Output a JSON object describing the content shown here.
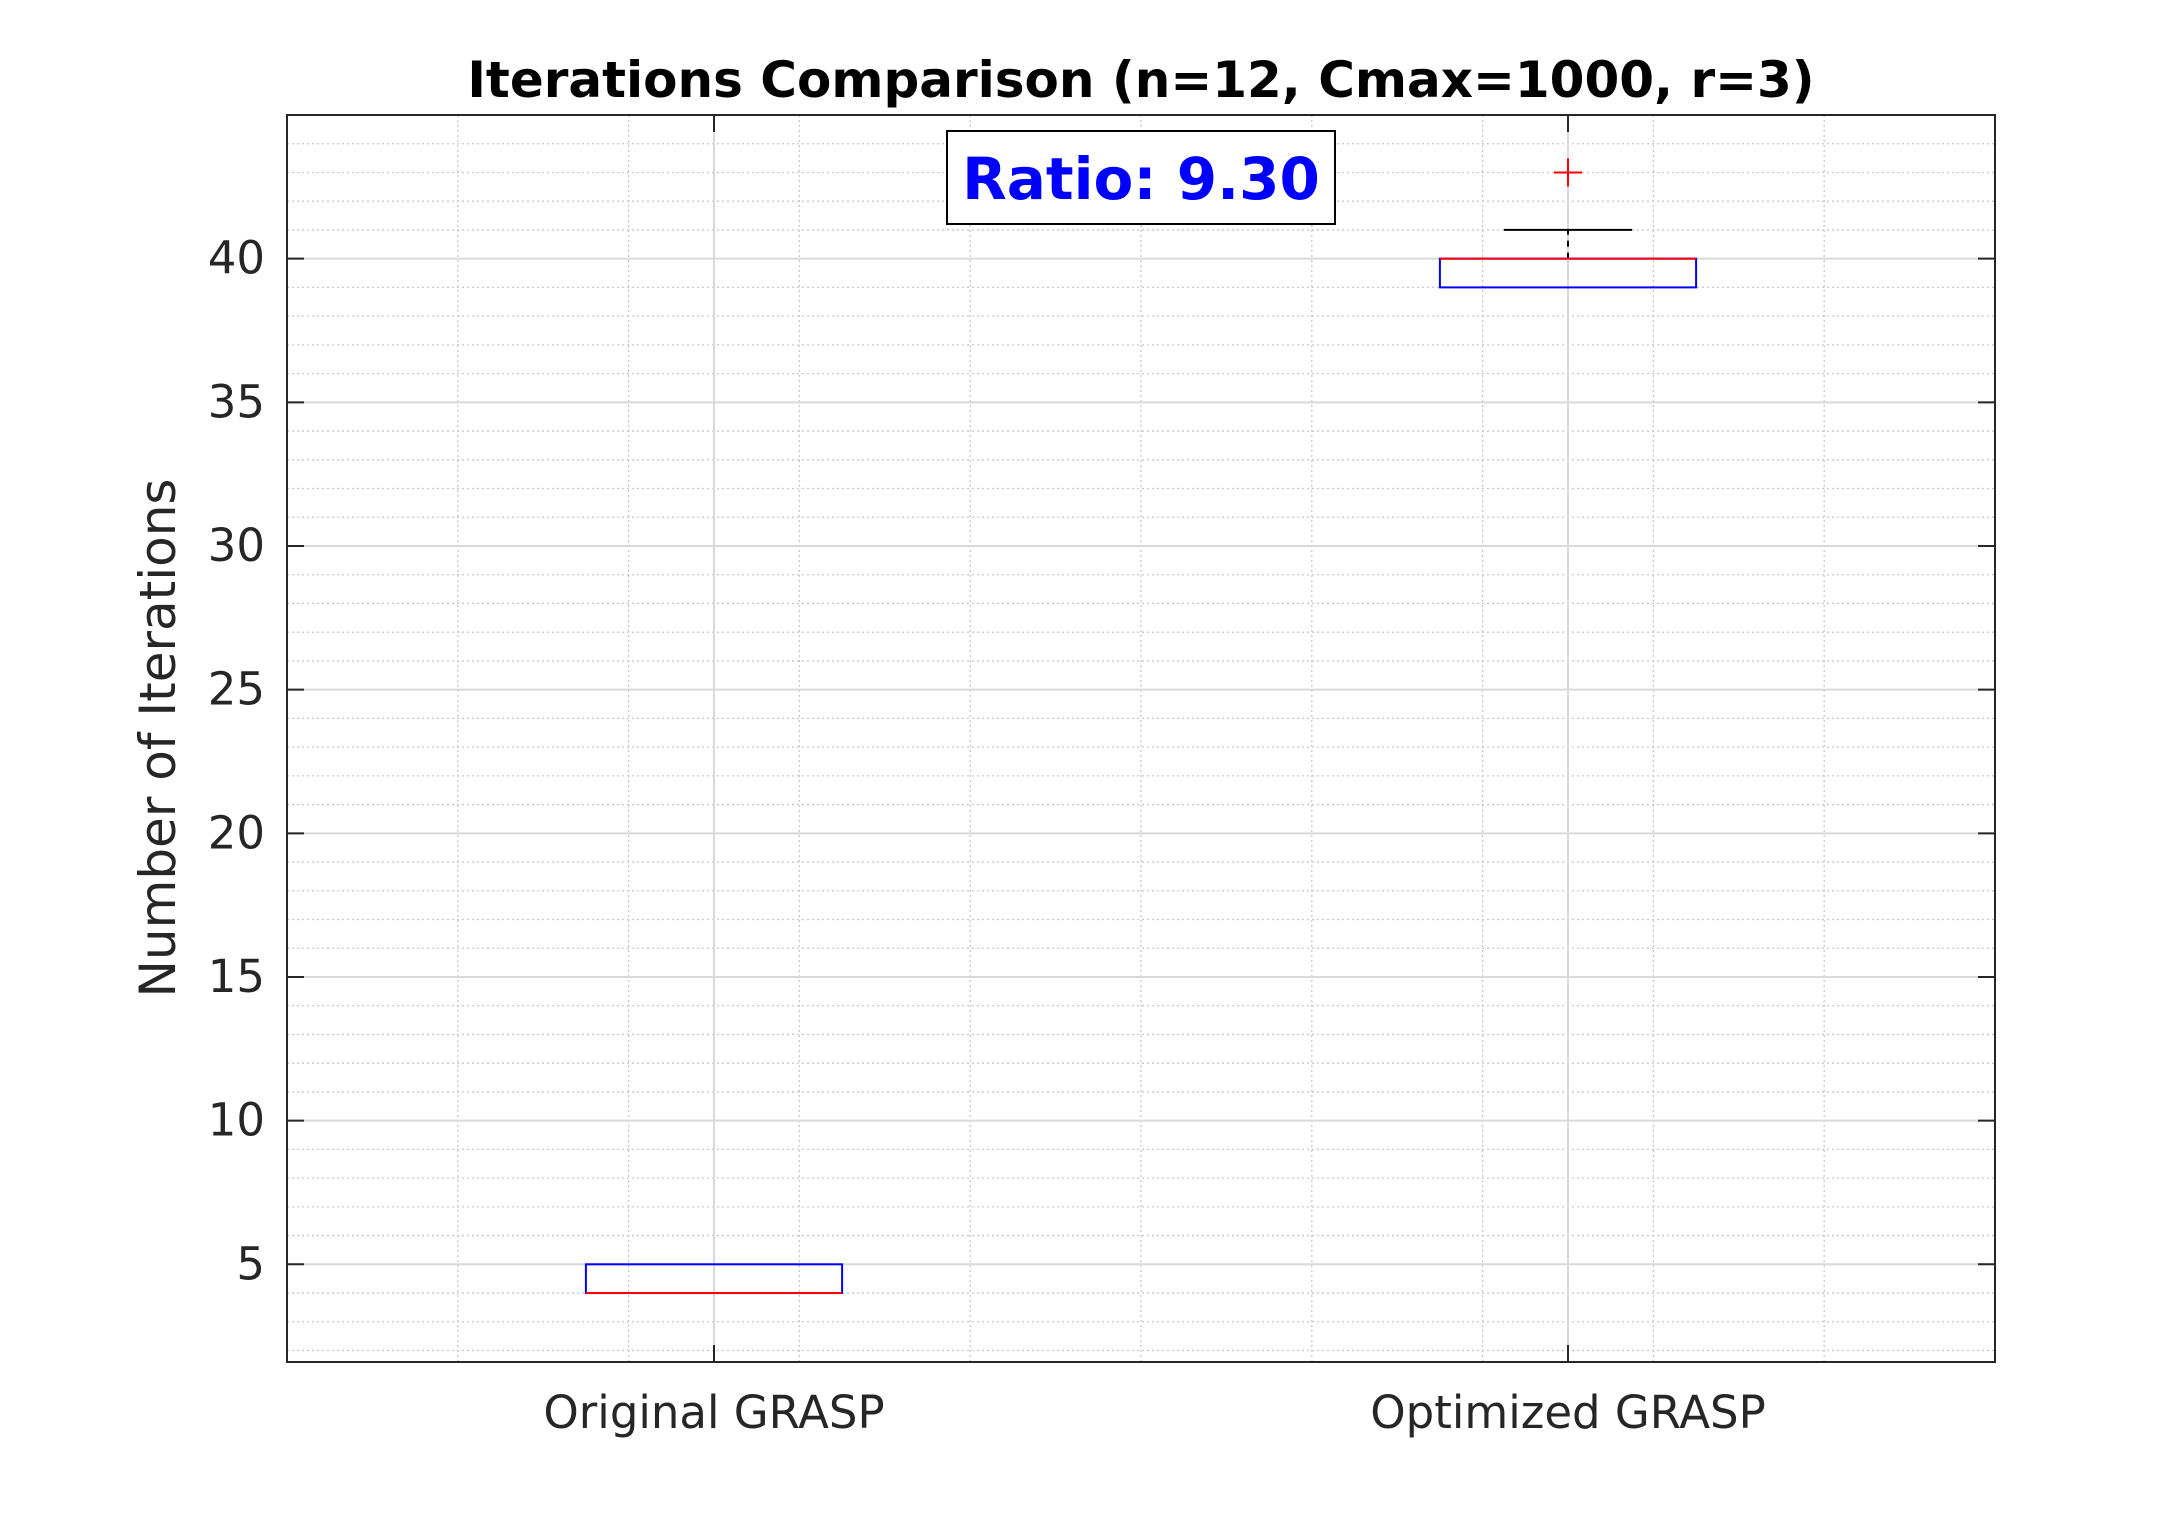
{
  "chart_data": {
    "type": "box",
    "title": "Iterations Comparison (n=12, Cmax=1000, r=3)",
    "xlabel": "",
    "ylabel": "Number of Iterations",
    "ylim": [
      1.6,
      45
    ],
    "yticks": [
      5,
      10,
      15,
      20,
      25,
      30,
      35,
      40
    ],
    "grid": true,
    "minor_grid": true,
    "categories": [
      "Original GRASP",
      "Optimized GRASP"
    ],
    "boxes": [
      {
        "category": "Original GRASP",
        "q1": 4,
        "median": 4,
        "q3": 5,
        "whisker_low": 4,
        "whisker_high": 5,
        "outliers": []
      },
      {
        "category": "Optimized GRASP",
        "q1": 39,
        "median": 40,
        "q3": 40,
        "whisker_low": 39,
        "whisker_high": 41,
        "outliers": [
          43
        ]
      }
    ],
    "annotation": {
      "text": "Ratio: 9.30",
      "color": "#0000ff"
    },
    "colors": {
      "box": "#0000ff",
      "median": "#ff0000",
      "outlier": "#ff0000",
      "whisker": "#000000"
    }
  }
}
